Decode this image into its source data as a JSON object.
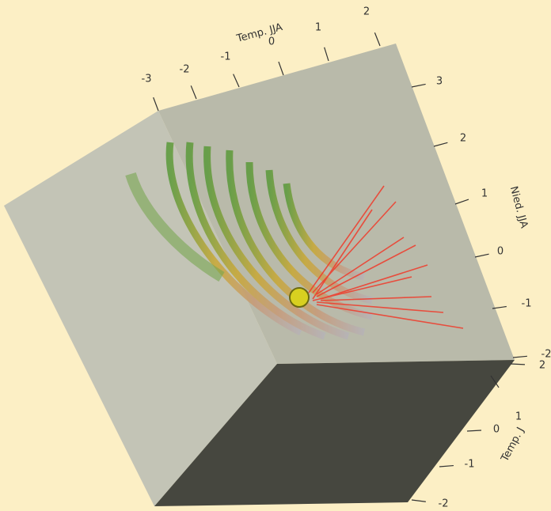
{
  "axes": [
    {
      "title": "Temp. JJA",
      "ticks": [
        -3,
        -2,
        -1,
        0,
        1,
        2
      ]
    },
    {
      "title": "Nied. JJA",
      "ticks": [
        3,
        2,
        1,
        0,
        -1,
        -2
      ]
    },
    {
      "title": "Temp. J",
      "ticks": [
        2,
        1,
        0,
        -1,
        -2
      ]
    }
  ]
}
